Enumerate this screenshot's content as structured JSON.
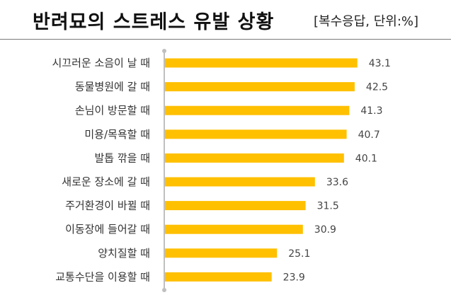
{
  "header": {
    "title": "반려묘의 스트레스 유발 상황",
    "subtitle": "[복수응답, 단위:%]"
  },
  "colors": {
    "bar": "#ffc000",
    "axis": "#bfbfbf"
  },
  "chart_data": {
    "type": "bar",
    "orientation": "horizontal",
    "title": "반려묘의 스트레스 유발 상황",
    "subtitle": "[복수응답, 단위:%]",
    "categories": [
      "시끄러운 소음이 날 때",
      "동물병원에 갈 때",
      "손님이 방문할 때",
      "미용/목욕할 때",
      "발톱 깎을 때",
      "새로운 장소에 갈 때",
      "주거환경이 바뀔 때",
      "이동장에 들어갈 때",
      "양치질할 때",
      "교통수단을 이용할 때"
    ],
    "values": [
      43.1,
      42.5,
      41.3,
      40.7,
      40.1,
      33.6,
      31.5,
      30.9,
      25.1,
      23.9
    ],
    "value_labels": [
      "43.1",
      "42.5",
      "41.3",
      "40.7",
      "40.1",
      "33.6",
      "31.5",
      "30.9",
      "25.1",
      "23.9"
    ],
    "xlim": [
      0,
      46
    ]
  }
}
